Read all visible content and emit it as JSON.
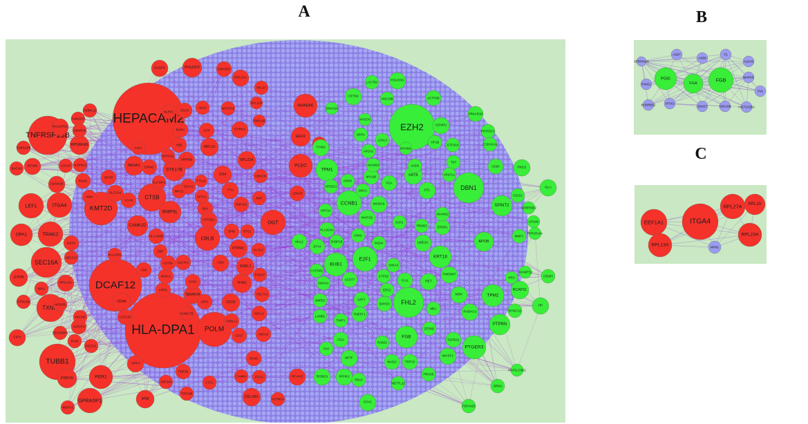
{
  "panels": [
    {
      "label": "A",
      "groups": [
        {
          "color": "#f4322a",
          "nodes": [
            "HEPACAM2",
            "HLA-DPA1",
            "DCAF12",
            "TNFRSF13B",
            "KMT2D",
            "TUBB1",
            "SEC16A",
            "TXNIP",
            "POLM",
            "CTSB",
            "CBLB",
            "OGT",
            "AHNAK",
            "PLEC",
            "EEF2",
            "ITGA4",
            "LEF1",
            "TRAK2",
            "OPA1",
            "STK17B",
            "BNIP3L",
            "CAMK1D",
            "NR4A1",
            "PER1",
            "GPRASP1",
            "P2RX5",
            "GYPB",
            "CIITA",
            "RPS6KA5",
            "RALGPS1",
            "FAM167A",
            "OSBPL10",
            "ANKRD6",
            "ALDH5A1",
            "CSF1R",
            "EP400",
            "BACH2",
            "TUBGCP6",
            "ADAM28",
            "IKZF3",
            "ABCC13",
            "MXI1",
            "RPL13A",
            "STRADB",
            "MOB3B",
            "SELENBP1",
            "AGPAT4",
            "NSUN3",
            "PAX5",
            "PIEZO1",
            "WDFY2",
            "ATM",
            "CD44",
            "CLEC2D",
            "CD8",
            "VIPR1",
            "SEMA7A",
            "MS4A1",
            "CD79A",
            "SLC4A1",
            "GYPA",
            "DBP",
            "TFRC",
            "CD22",
            "LRP1",
            "CD5",
            "SORL1",
            "PTPRC",
            "HLA-DMB",
            "HLA-DRA",
            "VCAN",
            "SLC2A1",
            "RHAG",
            "HBM",
            "IGF2R",
            "AAK1",
            "HBB",
            "EPB42",
            "MYO1G",
            "EEF1A1",
            "SLC38A1",
            "MRC2",
            "BLK",
            "CD4",
            "TTN",
            "ATP2B1",
            "SPTA1",
            "TTC14",
            "SRRM2",
            "RPL10",
            "RORA",
            "IL7R",
            "NLRP1",
            "FECH",
            "ADA2",
            "DUSP2",
            "POU2F2",
            "CNKSR2",
            "NOTCH2",
            "DYRK2",
            "RPL27A",
            "RPL37",
            "BCL11B",
            "TNRC6B",
            "RPL23A",
            "OBSCN",
            "BMF",
            "RNF213",
            "SPIB",
            "BTG1",
            "KLHL3",
            "FBXO7",
            "COL7A1",
            "NELL2",
            "COBLL1",
            "FAM117B",
            "CD27",
            "ABCA2",
            "SOX6",
            "CAMK4",
            "IFFO1",
            "CTC1",
            "PDE3B",
            "YIPF4",
            "ZNF548",
            "TSPAN5",
            "CELSR1",
            "VSTM2A",
            "RCAN3",
            "LENG8",
            "CENPI"
          ]
        },
        {
          "color": "#38ee38",
          "nodes": [
            "EZH2",
            "DBN1",
            "CCNB1",
            "TPM1",
            "FHL2",
            "E2F1",
            "BUB1",
            "KRT18",
            "TPM2",
            "PTGER3",
            "FGB",
            "PTPRN",
            "BCAP31",
            "SPINT2",
            "APOB",
            "MAP1B",
            "KRT8",
            "TYMS",
            "CETN2",
            "POLR3G",
            "ACTR3B",
            "UNC13B",
            "CENPU",
            "PRKAR1B",
            "PRTFDC1",
            "ZC3HAV1L",
            "YIF1B",
            "GTF3C6",
            "TST",
            "ARNTL2",
            "DTL",
            "FGA",
            "AVEN",
            "MYOM1",
            "MYL6B",
            "APOA2",
            "ADAM33",
            "DMC1",
            "MCM10",
            "DERA",
            "MYEOV",
            "LOXL3",
            "LACTB2",
            "DNAH14",
            "NT5DC2",
            "KRT19",
            "APOH",
            "PLA2G4A",
            "ETV4",
            "FKBP1B",
            "CNN1",
            "PADI4",
            "EAF2",
            "FRMD3",
            "UBE2C",
            "EPDR1",
            "ADAM22",
            "ANXA3",
            "CTPS2",
            "ACOT7",
            "CYSTM1",
            "MAL2",
            "DDAH1",
            "ICA1",
            "ERC2",
            "RET",
            "MDK",
            "SMYD3",
            "KRT7",
            "TMEFF1",
            "TIMP1",
            "SMPD1",
            "LAMB2",
            "FGG",
            "FAH",
            "MITF",
            "ROBO1",
            "SPHK1",
            "RAB32",
            "ZFPM2",
            "TMEM67",
            "RABAC1",
            "ME1",
            "DYNC1I1",
            "HRG",
            "CD63",
            "PKD2",
            "CD151",
            "GLA",
            "SERPINE2",
            "AP1M2",
            "PPP1R14A",
            "MMP1",
            "ADAMTS1",
            "CENPI",
            "HP",
            "TGFB1I1",
            "WASF1",
            "MAP1LC3B2",
            "ORM1",
            "TSPAN15",
            "TRPC6",
            "TRHDE",
            "METTL22",
            "MAGI2",
            "STAC",
            "PBLD"
          ]
        }
      ]
    },
    {
      "label": "B",
      "groups": [
        {
          "color": "#9b9bef",
          "nodes": [
            "SERPINA5",
            "ASB7",
            "ASB6",
            "F2",
            "ALDH2",
            "RING1",
            "MAPK6",
            "FN1",
            "KHDRBS2",
            "PITX3",
            "SNX27",
            "DDX19B",
            "HIST1H2BJ"
          ]
        },
        {
          "color": "#38ee38",
          "nodes": [
            "FGG",
            "FGA",
            "FGB"
          ]
        }
      ]
    },
    {
      "label": "C",
      "groups": [
        {
          "color": "#f4322a",
          "nodes": [
            "EEF1A1",
            "ITGA4",
            "RPL27A",
            "RPL10",
            "RPL13A",
            "RPL23A"
          ]
        },
        {
          "color": "#9b9bef",
          "nodes": [
            "NPM1"
          ]
        }
      ]
    }
  ]
}
